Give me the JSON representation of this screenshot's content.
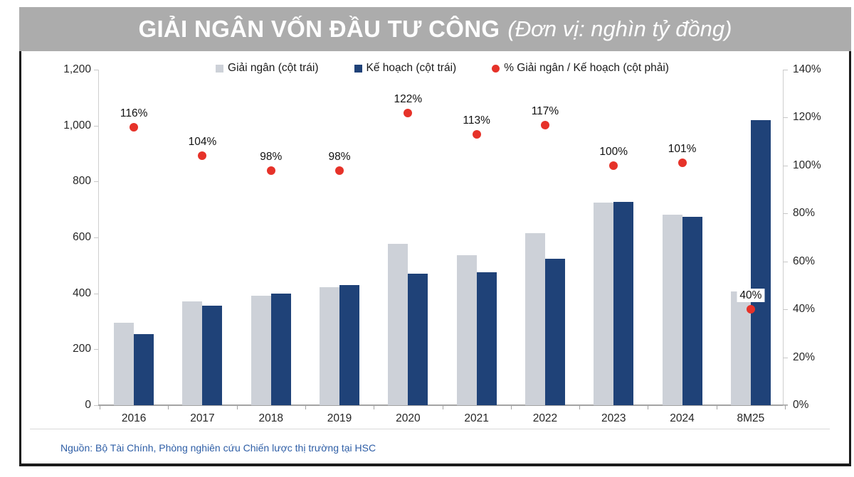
{
  "header": {
    "title": "GIẢI NGÂN VỐN ĐẦU TƯ CÔNG",
    "unit": "(Đơn vị: nghìn tỷ đồng)"
  },
  "footer": {
    "source": "Nguồn: Bộ Tài Chính, Phòng nghiên cứu Chiến lược thị trường tại HSC"
  },
  "colors": {
    "title_bar": "#acacac",
    "bar_disbursed": "#cdd1d8",
    "bar_plan": "#1f4278",
    "dot": "#e63229",
    "source_text": "#2e5ea6"
  },
  "chart_data": {
    "type": "bar",
    "title": "GIẢI NGÂN VỐN ĐẦU TƯ CÔNG (Đơn vị: nghìn tỷ đồng)",
    "categories": [
      "2016",
      "2017",
      "2018",
      "2019",
      "2020",
      "2021",
      "2022",
      "2023",
      "2024",
      "8M25"
    ],
    "series": [
      {
        "name": "Giải ngân (cột trái)",
        "type": "bar",
        "axis": "left",
        "color_key": "bar_disbursed",
        "values": [
          296,
          371,
          392,
          421,
          576,
          537,
          614,
          724,
          682,
          408
        ]
      },
      {
        "name": "Kế hoạch (cột trái)",
        "type": "bar",
        "axis": "left",
        "color_key": "bar_plan",
        "values": [
          255,
          356,
          400,
          430,
          470,
          476,
          525,
          726,
          675,
          1020
        ]
      },
      {
        "name": "% Giải ngân / Kế hoạch (cột phải)",
        "type": "point",
        "axis": "right",
        "color_key": "dot",
        "values": [
          116,
          104,
          98,
          98,
          122,
          113,
          117,
          100,
          101,
          40
        ],
        "labels": [
          "116%",
          "104%",
          "98%",
          "98%",
          "122%",
          "113%",
          "117%",
          "100%",
          "101%",
          "40%"
        ],
        "boxed_label_index": 9
      }
    ],
    "left_axis": {
      "min": 0,
      "max": 1200,
      "ticks": [
        "0",
        "200",
        "400",
        "600",
        "800",
        "1,000",
        "1,200"
      ]
    },
    "right_axis": {
      "min": 0,
      "max": 140,
      "ticks": [
        "0%",
        "20%",
        "40%",
        "60%",
        "80%",
        "100%",
        "120%",
        "140%"
      ]
    },
    "grid": false,
    "legend_position": "top"
  }
}
